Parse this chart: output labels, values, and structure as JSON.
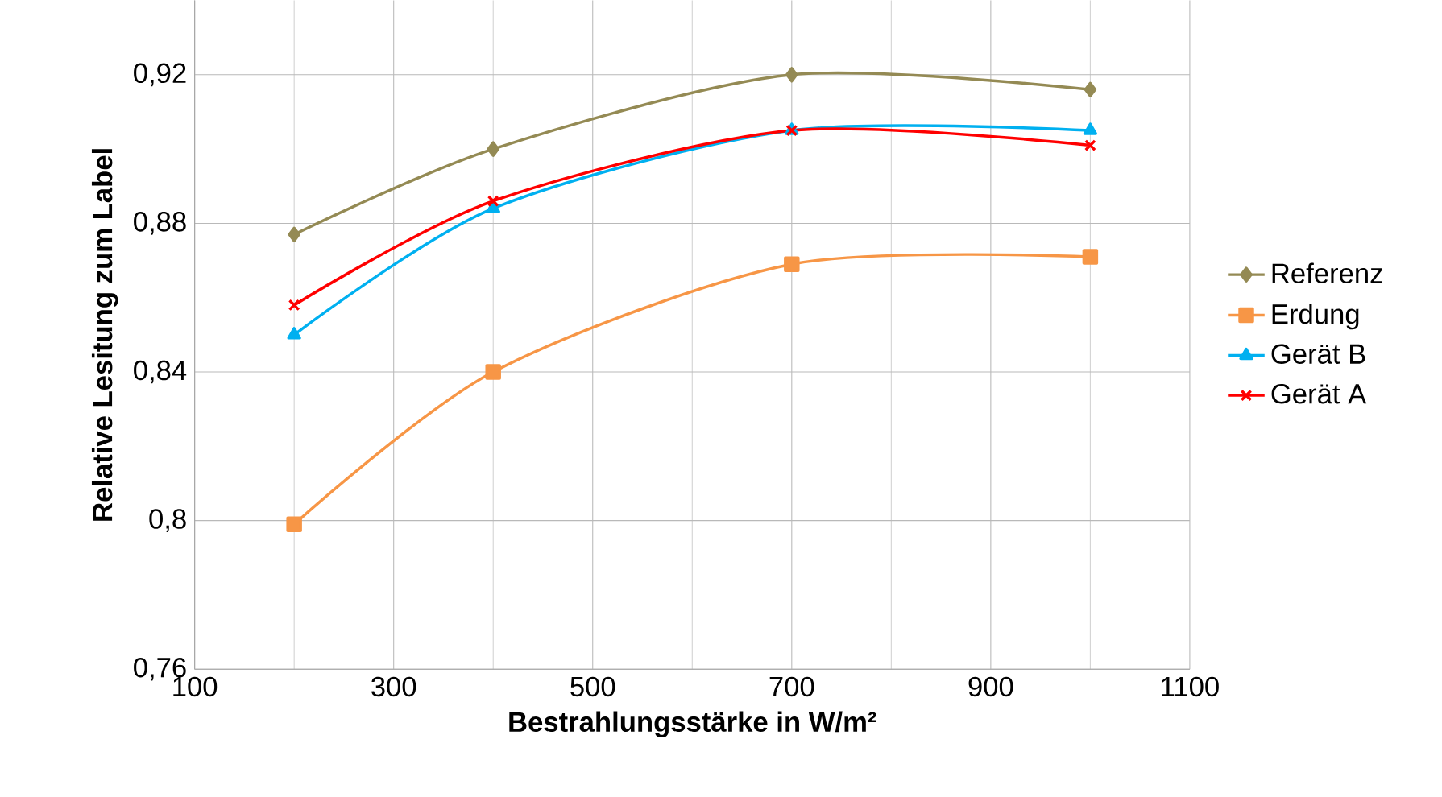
{
  "chart_data": {
    "type": "line",
    "xlabel": "Bestrahlungsstärke in W/m²",
    "ylabel": "Relative Lesitung zum Label",
    "x": [
      200,
      400,
      700,
      1000
    ],
    "series": [
      {
        "name": "Referenz",
        "color": "#948a54",
        "marker": "diamond",
        "values": [
          0.877,
          0.9,
          0.92,
          0.916
        ]
      },
      {
        "name": "Erdung",
        "color": "#f79646",
        "marker": "square",
        "values": [
          0.799,
          0.84,
          0.869,
          0.871
        ]
      },
      {
        "name": "Gerät B",
        "color": "#00b0f0",
        "marker": "triangle",
        "values": [
          0.85,
          0.884,
          0.905,
          0.905
        ]
      },
      {
        "name": "Gerät A",
        "color": "#ff0000",
        "marker": "cross",
        "values": [
          0.858,
          0.886,
          0.905,
          0.901
        ]
      }
    ],
    "xlim": [
      100,
      1100
    ],
    "xticks": [
      100,
      300,
      500,
      700,
      900,
      1100
    ],
    "ylim": [
      0.76,
      0.94
    ],
    "yticks": [
      {
        "value": 0.76,
        "label": "0,76"
      },
      {
        "value": 0.8,
        "label": "0,8"
      },
      {
        "value": 0.84,
        "label": "0,84"
      },
      {
        "value": 0.88,
        "label": "0,88"
      },
      {
        "value": 0.92,
        "label": "0,92"
      }
    ],
    "grid": true,
    "legend": "right",
    "line_style": "solid"
  }
}
